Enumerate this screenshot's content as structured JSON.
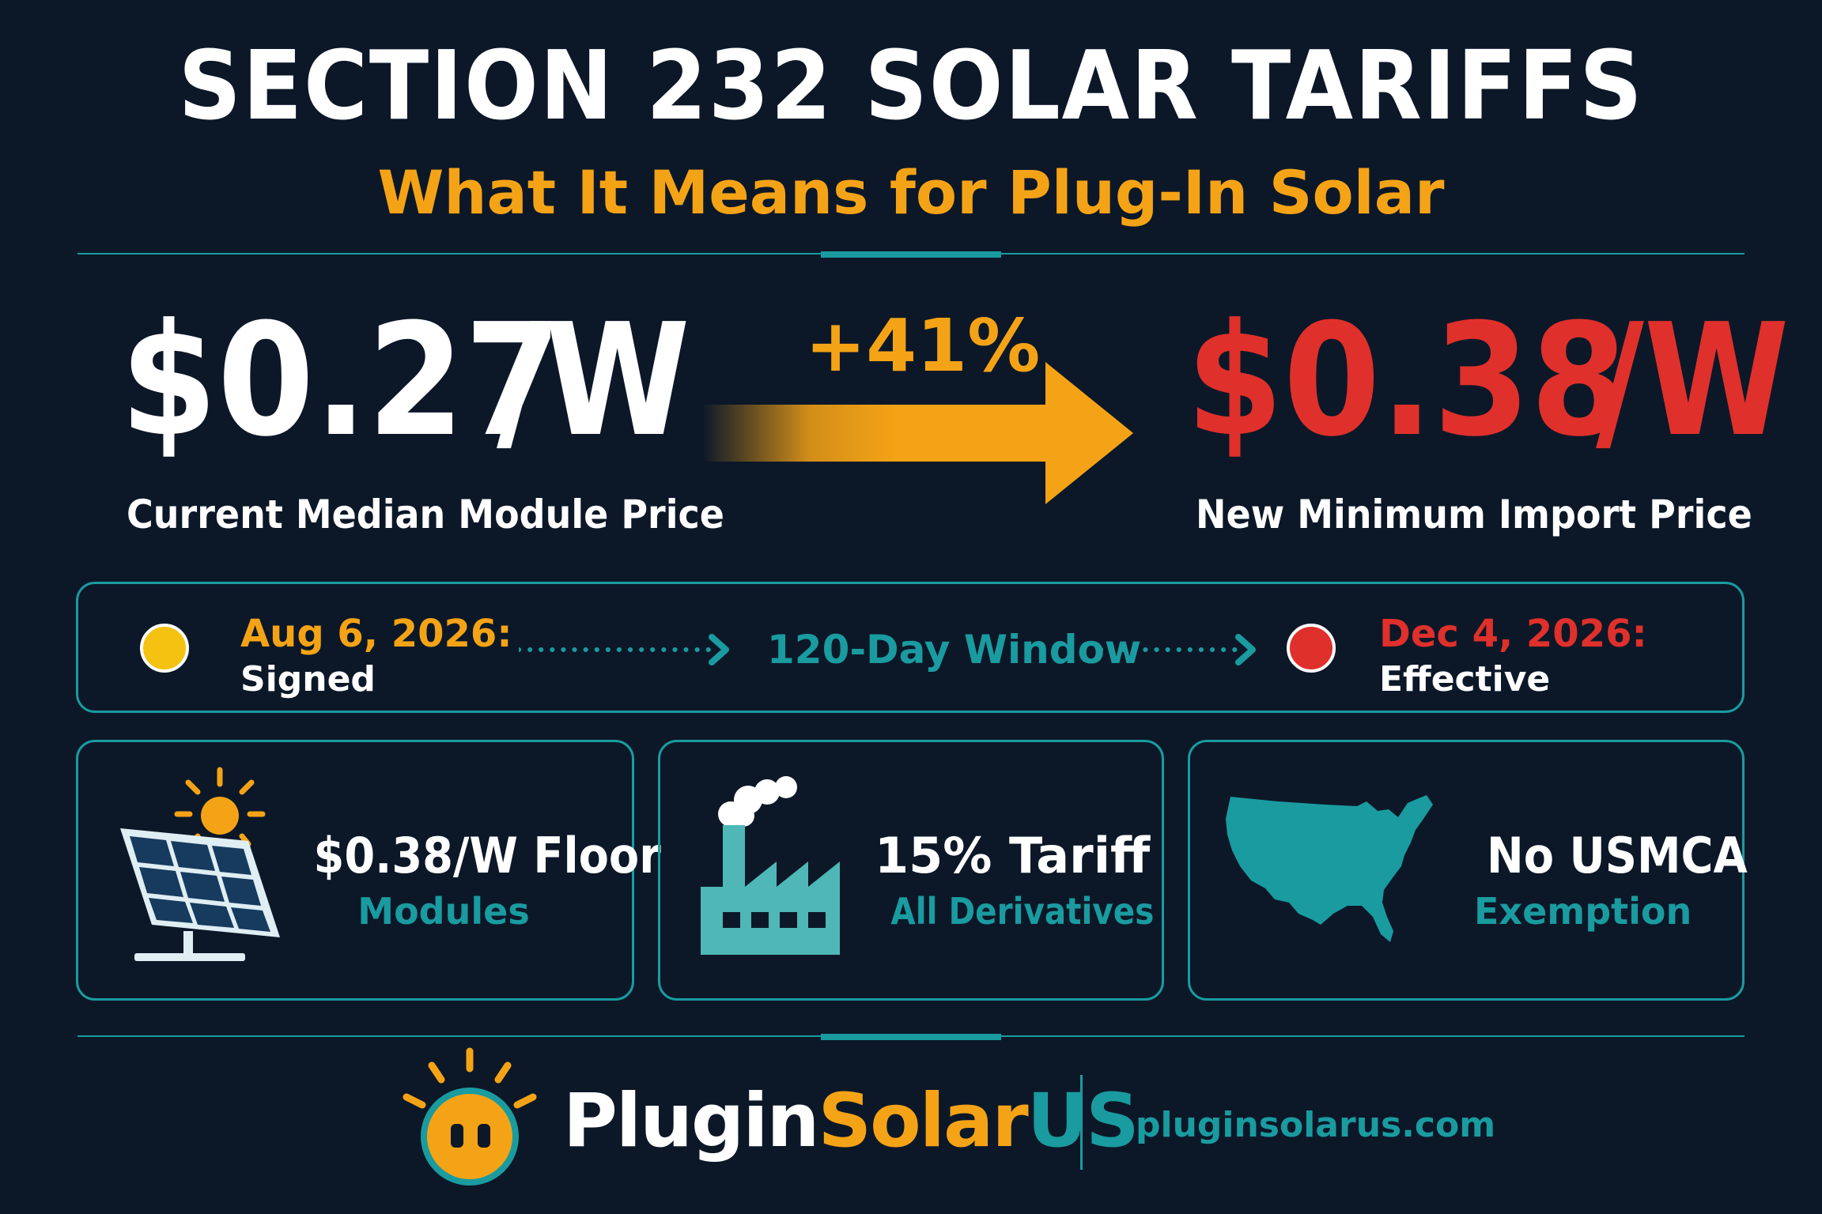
{
  "header": {
    "title": "SECTION 232 SOLAR TARIFFS",
    "subtitle": "What It Means for Plug-In Solar"
  },
  "comparison": {
    "current": {
      "amount": "$0.27",
      "unit": "/W",
      "label": "Current Median Module Price"
    },
    "change": "+41%",
    "new": {
      "amount": "$0.38",
      "unit": "/W",
      "label": "New Minimum Import Price"
    }
  },
  "timeline": {
    "start": {
      "date": "Aug 6, 2026:",
      "label": "Signed"
    },
    "window": "120-Day Window",
    "end": {
      "date": "Dec 4, 2026:",
      "label": "Effective"
    }
  },
  "cards": [
    {
      "title": "$0.38/W Floor",
      "subtitle": "Modules",
      "icon": "solar-panel-icon"
    },
    {
      "title": "15% Tariff",
      "subtitle": "All Derivatives",
      "icon": "factory-icon"
    },
    {
      "title": "No USMCA",
      "subtitle": "Exemption",
      "icon": "usa-map-icon"
    }
  ],
  "footer": {
    "brand_part1": "Plugin",
    "brand_part2": "Solar",
    "brand_part3": "US",
    "website": "pluginsolarus.com"
  },
  "colors": {
    "background": "#0c1828",
    "accent_orange": "#f5a316",
    "accent_red": "#e0302b",
    "accent_teal": "#1a9ba0",
    "text_white": "#ffffff"
  }
}
